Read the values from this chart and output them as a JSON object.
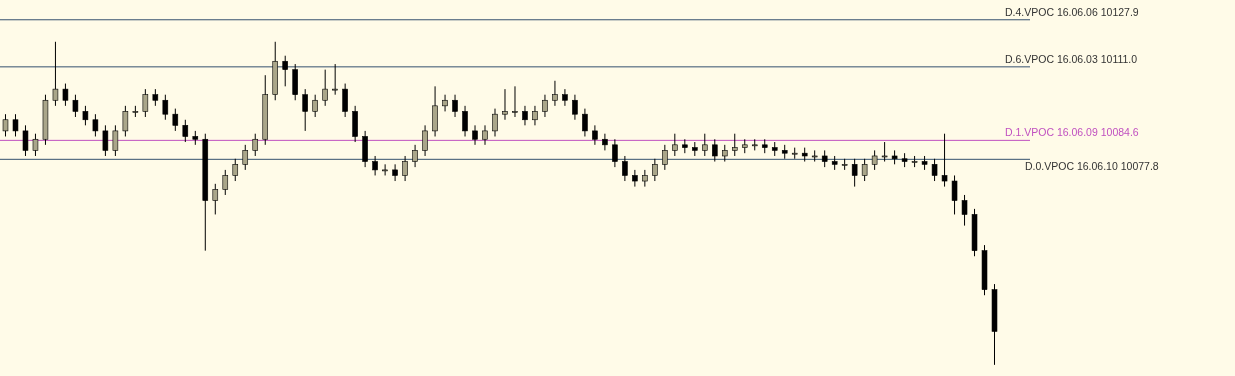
{
  "chart_data": {
    "type": "candlestick",
    "categories": [
      null,
      null,
      null,
      null,
      null,
      null,
      null,
      null,
      null,
      null,
      null,
      null,
      null,
      null,
      null,
      null,
      null,
      null,
      null,
      null,
      null,
      null,
      null,
      null,
      null,
      null,
      null,
      null,
      null,
      null,
      null,
      null,
      null,
      null,
      null,
      null,
      null,
      null,
      null,
      null,
      null,
      null,
      null,
      null,
      null,
      null,
      null,
      null,
      null,
      null,
      null,
      null,
      null,
      null,
      null,
      null,
      null,
      null,
      null,
      null,
      null,
      null,
      null,
      null,
      null,
      null,
      null,
      null,
      null,
      null,
      null,
      null,
      null,
      null,
      null,
      null,
      null,
      null,
      null,
      null,
      null,
      null,
      null,
      null,
      null,
      null,
      null,
      null,
      null,
      null,
      null,
      null,
      null,
      null,
      null,
      null,
      null,
      null,
      null,
      null
    ],
    "ohlc": [
      [
        10088,
        10094,
        10086,
        10092
      ],
      [
        10092,
        10094,
        10086,
        10088
      ],
      [
        10088,
        10090,
        10079,
        10081
      ],
      [
        10081,
        10087,
        10079,
        10085
      ],
      [
        10085,
        10101,
        10083,
        10099
      ],
      [
        10099,
        10120,
        10097,
        10103
      ],
      [
        10103,
        10105,
        10097,
        10099
      ],
      [
        10099,
        10101,
        10093,
        10095
      ],
      [
        10095,
        10097,
        10090,
        10092
      ],
      [
        10092,
        10094,
        10086,
        10088
      ],
      [
        10088,
        10090,
        10079,
        10081
      ],
      [
        10081,
        10090,
        10079,
        10088
      ],
      [
        10088,
        10097,
        10086,
        10095
      ],
      [
        10095,
        10097,
        10093,
        10095
      ],
      [
        10095,
        10103,
        10093,
        10101
      ],
      [
        10101,
        10103,
        10097,
        10099
      ],
      [
        10099,
        10101,
        10092,
        10094
      ],
      [
        10094,
        10096,
        10088,
        10090
      ],
      [
        10090,
        10092,
        10084,
        10086
      ],
      [
        10086,
        10088,
        10083,
        10085
      ],
      [
        10085,
        10087,
        10045,
        10063
      ],
      [
        10063,
        10069,
        10058,
        10067
      ],
      [
        10067,
        10074,
        10065,
        10072
      ],
      [
        10072,
        10078,
        10070,
        10076
      ],
      [
        10076,
        10083,
        10074,
        10081
      ],
      [
        10081,
        10087,
        10079,
        10085
      ],
      [
        10085,
        10108,
        10083,
        10101
      ],
      [
        10101,
        10120,
        10099,
        10113
      ],
      [
        10113,
        10115,
        10104,
        10110
      ],
      [
        10110,
        10112,
        10099,
        10101
      ],
      [
        10101,
        10103,
        10088,
        10095
      ],
      [
        10095,
        10101,
        10093,
        10099
      ],
      [
        10099,
        10110,
        10097,
        10103
      ],
      [
        10103,
        10112,
        10101,
        10103
      ],
      [
        10103,
        10105,
        10093,
        10095
      ],
      [
        10095,
        10097,
        10084,
        10086
      ],
      [
        10086,
        10088,
        10075,
        10077
      ],
      [
        10077,
        10079,
        10072,
        10074
      ],
      [
        10074,
        10076,
        10072,
        10074
      ],
      [
        10074,
        10076,
        10070,
        10072
      ],
      [
        10072,
        10079,
        10070,
        10077
      ],
      [
        10077,
        10083,
        10075,
        10081
      ],
      [
        10081,
        10090,
        10079,
        10088
      ],
      [
        10088,
        10104,
        10086,
        10097
      ],
      [
        10097,
        10101,
        10095,
        10099
      ],
      [
        10099,
        10101,
        10093,
        10095
      ],
      [
        10095,
        10097,
        10086,
        10088
      ],
      [
        10088,
        10090,
        10083,
        10085
      ],
      [
        10085,
        10090,
        10083,
        10088
      ],
      [
        10088,
        10096,
        10086,
        10094
      ],
      [
        10094,
        10103,
        10092,
        10095
      ],
      [
        10095,
        10104,
        10093,
        10095
      ],
      [
        10095,
        10097,
        10090,
        10092
      ],
      [
        10092,
        10097,
        10090,
        10095
      ],
      [
        10095,
        10101,
        10093,
        10099
      ],
      [
        10099,
        10106,
        10097,
        10101
      ],
      [
        10101,
        10103,
        10097,
        10099
      ],
      [
        10099,
        10101,
        10092,
        10094
      ],
      [
        10094,
        10096,
        10086,
        10088
      ],
      [
        10088,
        10090,
        10083,
        10085
      ],
      [
        10085,
        10087,
        10081,
        10083
      ],
      [
        10083,
        10085,
        10075,
        10077
      ],
      [
        10077,
        10079,
        10070,
        10072
      ],
      [
        10072,
        10074,
        10068,
        10070
      ],
      [
        10070,
        10074,
        10068,
        10072
      ],
      [
        10072,
        10078,
        10070,
        10076
      ],
      [
        10076,
        10083,
        10074,
        10081
      ],
      [
        10081,
        10087,
        10079,
        10083
      ],
      [
        10083,
        10085,
        10080,
        10082
      ],
      [
        10082,
        10084,
        10079,
        10081
      ],
      [
        10081,
        10087,
        10079,
        10083
      ],
      [
        10083,
        10085,
        10077,
        10079
      ],
      [
        10079,
        10083,
        10077,
        10081
      ],
      [
        10081,
        10087,
        10079,
        10082
      ],
      [
        10082,
        10085,
        10080,
        10083
      ],
      [
        10083,
        10085,
        10081,
        10083
      ],
      [
        10083,
        10085,
        10080,
        10082
      ],
      [
        10082,
        10084,
        10079,
        10081
      ],
      [
        10081,
        10083,
        10078,
        10080
      ],
      [
        10080,
        10082,
        10078,
        10080
      ],
      [
        10080,
        10082,
        10077,
        10079
      ],
      [
        10079,
        10081,
        10077,
        10079
      ],
      [
        10079,
        10081,
        10075,
        10077
      ],
      [
        10077,
        10079,
        10074,
        10076
      ],
      [
        10076,
        10078,
        10074,
        10076
      ],
      [
        10076,
        10078,
        10068,
        10072
      ],
      [
        10072,
        10078,
        10070,
        10076
      ],
      [
        10076,
        10081,
        10074,
        10079
      ],
      [
        10079,
        10084,
        10077,
        10079
      ],
      [
        10079,
        10081,
        10076,
        10078
      ],
      [
        10078,
        10080,
        10075,
        10077
      ],
      [
        10077,
        10079,
        10075,
        10077
      ],
      [
        10077,
        10079,
        10074,
        10076
      ],
      [
        10076,
        10078,
        10070,
        10072
      ],
      [
        10072,
        10087,
        10068,
        10070
      ],
      [
        10070,
        10072,
        10058,
        10063
      ],
      [
        10063,
        10065,
        10054,
        10058
      ],
      [
        10058,
        10060,
        10043,
        10045
      ],
      [
        10045,
        10047,
        10029,
        10031
      ],
      [
        10031,
        10033,
        10004,
        10016
      ]
    ],
    "ylim": [
      10000,
      10135
    ],
    "ref_lines": [
      {
        "axis": "y",
        "value": 10127.9,
        "label": "D.4.VPOC 16.06.06 10127.9",
        "color": "#34506e"
      },
      {
        "axis": "y",
        "value": 10111.0,
        "label": "D.6.VPOC 16.06.03 10111.0",
        "color": "#34506e"
      },
      {
        "axis": "y",
        "value": 10084.6,
        "label": "D.1.VPOC 16.06.09 10084.6",
        "color": "#c050c0"
      },
      {
        "axis": "y",
        "value": 10077.8,
        "label": "D.0.VPOC 16.06.10 10077.8",
        "color": "#34506e"
      }
    ]
  }
}
